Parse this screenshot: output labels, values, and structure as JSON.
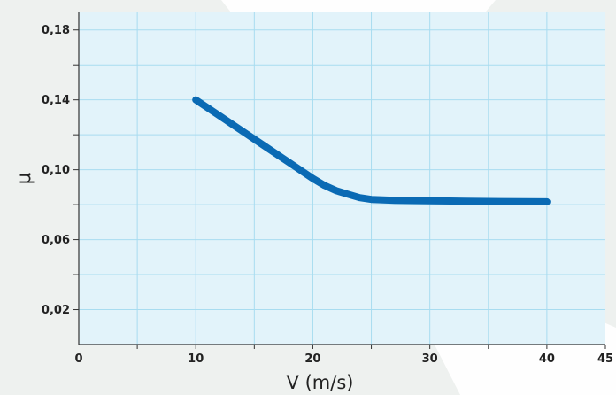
{
  "chart_data": {
    "type": "line",
    "title": "",
    "xlabel": "V (m/s)",
    "ylabel": "μ",
    "xlim": [
      0,
      45
    ],
    "ylim": [
      0,
      0.19
    ],
    "x_ticks": [
      0,
      10,
      20,
      30,
      40,
      45
    ],
    "x_tick_labels": [
      "0",
      "10",
      "20",
      "30",
      "40",
      "45"
    ],
    "y_ticks": [
      0.02,
      0.06,
      0.1,
      0.14,
      0.18
    ],
    "y_tick_labels": [
      "0,02",
      "0,06",
      "0,10",
      "0,14",
      "0,18"
    ],
    "grid": true,
    "series": [
      {
        "x": [
          10,
          12,
          14,
          16,
          18,
          20,
          21,
          22,
          23,
          24,
          25,
          27,
          30,
          33,
          36,
          38,
          40
        ],
        "y": [
          0.14,
          0.131,
          0.122,
          0.113,
          0.104,
          0.095,
          0.091,
          0.088,
          0.086,
          0.084,
          0.083,
          0.0825,
          0.0822,
          0.082,
          0.0818,
          0.0817,
          0.0816
        ],
        "color": "#0a6ab4"
      }
    ],
    "colors": {
      "plot_background": "#e2f3fa",
      "grid": "#a8dcf0",
      "axis": "#333333",
      "page_background": "#eef1ef"
    }
  }
}
